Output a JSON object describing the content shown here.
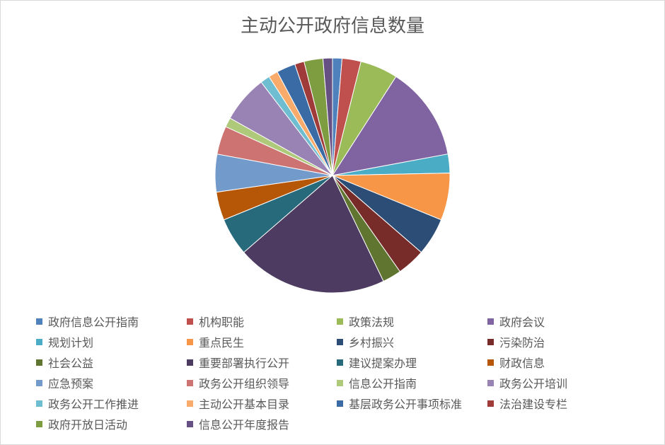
{
  "chart_data": {
    "type": "pie",
    "title": "主动公开政府信息数量",
    "legend_position": "bottom",
    "start_angle": "top, clockwise",
    "categories": [
      "政府信息公开指南",
      "机构职能",
      "政策法规",
      "政府会议",
      "规划计划",
      "重点民生",
      "乡村振兴",
      "污染防治",
      "社会公益",
      "重要部署执行公开",
      "建议提案办理",
      "财政信息",
      "应急预案",
      "政务公开组织领导",
      "信息公开指南",
      "政务公开培训",
      "政务公开工作推进",
      "主动公开基本目录",
      "基层政务公开事项标准",
      "法治建设专栏",
      "政府开放日活动",
      "信息公开年度报告"
    ],
    "values": [
      1,
      2,
      4,
      10,
      2,
      5,
      4,
      3,
      2,
      16,
      4,
      3,
      4,
      3,
      1,
      5,
      1,
      1,
      2,
      1,
      2,
      1
    ],
    "colors": [
      "#4F81BD",
      "#C0504D",
      "#9BBB59",
      "#8064A2",
      "#4BACC6",
      "#F79646",
      "#2C4D75",
      "#772C2A",
      "#5F7530",
      "#4D3B62",
      "#276A7C",
      "#B65708",
      "#729ACA",
      "#CD7371",
      "#AFC97A",
      "#9983B5",
      "#6FBDD1",
      "#F9AB6B",
      "#3A6BA5",
      "#9F3B38",
      "#7E9C40",
      "#664F83"
    ]
  }
}
